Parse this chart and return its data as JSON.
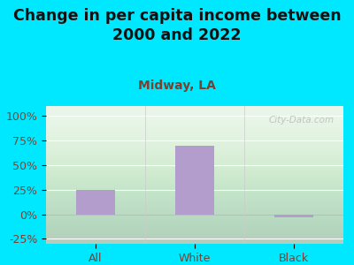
{
  "title": "Change in per capita income between\n2000 and 2022",
  "subtitle": "Midway, LA",
  "categories": [
    "All",
    "White",
    "Black"
  ],
  "values": [
    25,
    70,
    -3
  ],
  "bar_color": "#b39dcc",
  "background_outer": "#00e8ff",
  "title_color": "#111111",
  "subtitle_color": "#7a4030",
  "tick_label_color": "#7a4030",
  "ylim": [
    -30,
    110
  ],
  "yticks": [
    -25,
    0,
    25,
    50,
    75,
    100
  ],
  "ytick_labels": [
    "-25%",
    "0%",
    "25%",
    "50%",
    "75%",
    "100%"
  ],
  "watermark": "City-Data.com",
  "title_fontsize": 12.5,
  "subtitle_fontsize": 10,
  "tick_fontsize": 9
}
